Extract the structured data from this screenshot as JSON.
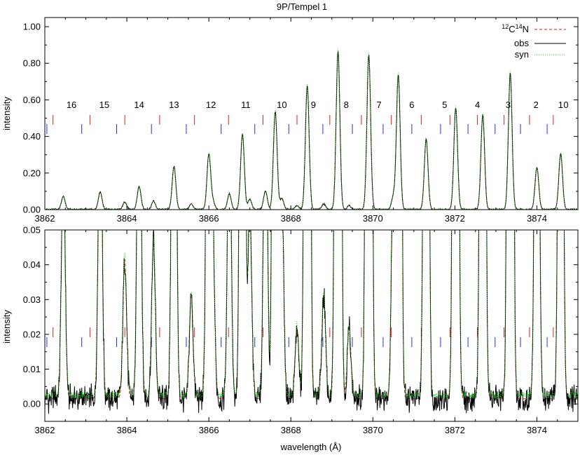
{
  "chart_data": [
    {
      "type": "line",
      "title": "9P/Tempel 1",
      "ylabel": "intensity",
      "xlabel": "",
      "xlim": [
        3862,
        3875
      ],
      "ylim": [
        0,
        1.05
      ],
      "xticks": [
        3862,
        3864,
        3866,
        3868,
        3870,
        3872,
        3874
      ],
      "xtick_labels": [
        "3862",
        "3864",
        "3866",
        "3868",
        "3870",
        "3872",
        "3874"
      ],
      "yticks": [
        0,
        0.2,
        0.4,
        0.6,
        0.8,
        1.0
      ],
      "ytick_labels": [
        "0.00",
        "0.20",
        "0.40",
        "0.60",
        "0.80",
        "1.00"
      ],
      "legend_position": "top-right",
      "legend": [
        {
          "prefix_sup": "12",
          "mid": "C",
          "mid_sup": "14",
          "suffix": "N",
          "color": "#d62020",
          "dash": "dashed"
        },
        {
          "label": "obs",
          "color": "#000000",
          "dash": "solid"
        },
        {
          "label": "syn",
          "color": "#11cc11",
          "dash": "dotted"
        }
      ],
      "annotations": [
        "16",
        "15",
        "14",
        "13",
        "12",
        "11",
        "10",
        "9",
        "8",
        "7",
        "6",
        "5",
        "4",
        "3",
        "2",
        "1",
        "0"
      ],
      "annotation_x": [
        3862.65,
        3863.45,
        3864.3,
        3865.15,
        3866.05,
        3866.9,
        3867.78,
        3868.55,
        3869.35,
        3870.15,
        3870.95,
        3871.75,
        3872.55,
        3873.3,
        3873.98,
        3874.58,
        3875.0
      ],
      "peaks": [
        {
          "x": 3862.45,
          "y": 0.07
        },
        {
          "x": 3863.35,
          "y": 0.095
        },
        {
          "x": 3863.95,
          "y": 0.04
        },
        {
          "x": 3864.3,
          "y": 0.125
        },
        {
          "x": 3864.65,
          "y": 0.045
        },
        {
          "x": 3865.15,
          "y": 0.235
        },
        {
          "x": 3865.57,
          "y": 0.03
        },
        {
          "x": 3866.0,
          "y": 0.3
        },
        {
          "x": 3866.1,
          "y": 0.04
        },
        {
          "x": 3866.5,
          "y": 0.085
        },
        {
          "x": 3866.82,
          "y": 0.41
        },
        {
          "x": 3867.0,
          "y": 0.055
        },
        {
          "x": 3867.38,
          "y": 0.1
        },
        {
          "x": 3867.62,
          "y": 0.535
        },
        {
          "x": 3867.78,
          "y": 0.06
        },
        {
          "x": 3868.15,
          "y": 0.02
        },
        {
          "x": 3868.4,
          "y": 0.675
        },
        {
          "x": 3868.8,
          "y": 0.03
        },
        {
          "x": 3869.15,
          "y": 0.865
        },
        {
          "x": 3869.42,
          "y": 0.02
        },
        {
          "x": 3869.9,
          "y": 0.845
        },
        {
          "x": 3870.5,
          "y": 0.07
        },
        {
          "x": 3870.62,
          "y": 0.735
        },
        {
          "x": 3871.3,
          "y": 0.385
        },
        {
          "x": 3872.02,
          "y": 0.555
        },
        {
          "x": 3872.68,
          "y": 0.515
        },
        {
          "x": 3873.35,
          "y": 0.745
        },
        {
          "x": 3874.0,
          "y": 0.23
        },
        {
          "x": 3874.58,
          "y": 0.305
        }
      ],
      "lines_red_x": [
        3862.2,
        3863.1,
        3863.95,
        3864.8,
        3865.65,
        3866.48,
        3867.32,
        3868.15,
        3868.95,
        3869.72,
        3870.45,
        3871.18,
        3871.88,
        3872.55,
        3873.2,
        3873.82,
        3874.4
      ],
      "lines_blue_x": [
        3862.05,
        3862.9,
        3863.75,
        3864.6,
        3865.45,
        3866.3,
        3867.12,
        3867.95,
        3868.78,
        3869.5,
        3870.25,
        3870.95,
        3871.65,
        3872.32,
        3872.98,
        3873.6,
        3874.25
      ]
    },
    {
      "type": "line",
      "title": "",
      "ylabel": "intensity",
      "xlabel": "wavelength (Å)",
      "xlim": [
        3862,
        3875
      ],
      "ylim": [
        -0.005,
        0.05
      ],
      "xticks": [
        3862,
        3864,
        3866,
        3868,
        3870,
        3872,
        3874
      ],
      "xtick_labels": [
        "3862",
        "3864",
        "3866",
        "3868",
        "3870",
        "3872",
        "3874"
      ],
      "yticks": [
        0,
        0.01,
        0.02,
        0.03,
        0.04,
        0.05
      ],
      "ytick_labels": [
        "0.00",
        "0.01",
        "0.02",
        "0.03",
        "0.04",
        "0.05"
      ]
    }
  ]
}
